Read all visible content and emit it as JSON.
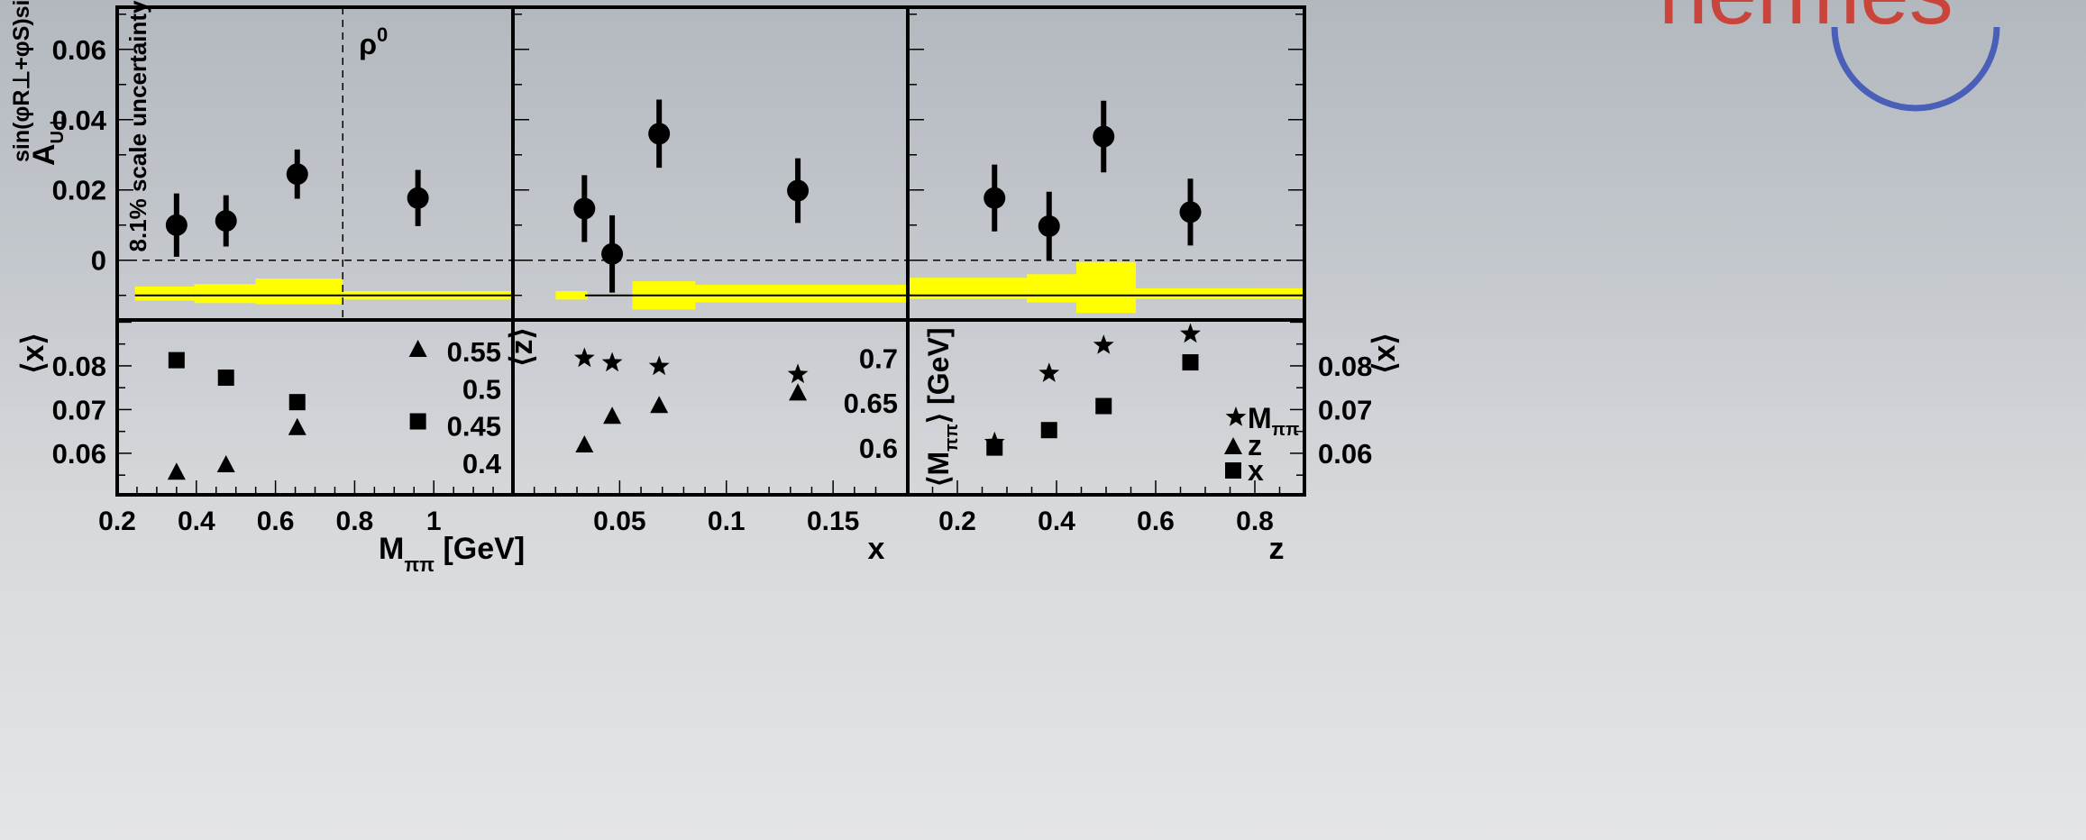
{
  "logo": {
    "text": "nermes",
    "color": "#c9443a",
    "ring": "#4a5fb8"
  },
  "chart_data": [
    {
      "type": "scatter",
      "panel": "top-left",
      "ylabel": "A_U⊥^{sin(φR⊥+φS)sinθ}",
      "ylim": [
        -0.017,
        0.072
      ],
      "yticks": [
        "0",
        "0.02",
        "0.04",
        "0.06"
      ],
      "xlim": [
        0.2,
        1.2
      ],
      "annotations": [
        "8.1% scale uncertainty",
        "ρ0"
      ],
      "rho_line": 0.77,
      "points": [
        {
          "x": 0.35,
          "y": 0.01,
          "err": 0.009
        },
        {
          "x": 0.475,
          "y": 0.0112,
          "err": 0.0073
        },
        {
          "x": 0.655,
          "y": 0.0245,
          "err": 0.007
        },
        {
          "x": 0.96,
          "y": 0.0177,
          "err": 0.008
        }
      ],
      "syst_bands": [
        {
          "x0": 0.245,
          "x1": 0.395,
          "lo": -0.0115,
          "hi": -0.0075
        },
        {
          "x0": 0.395,
          "x1": 0.55,
          "lo": -0.0122,
          "hi": -0.0068
        },
        {
          "x0": 0.55,
          "x1": 0.77,
          "lo": -0.0125,
          "hi": -0.0052
        },
        {
          "x0": 0.77,
          "x1": 1.2,
          "lo": -0.0112,
          "hi": -0.0088
        }
      ]
    },
    {
      "type": "scatter",
      "panel": "top-middle",
      "xlim": [
        0,
        0.185
      ],
      "points": [
        {
          "x": 0.0335,
          "y": 0.0147,
          "err": 0.0095
        },
        {
          "x": 0.0465,
          "y": 0.0018,
          "err": 0.011
        },
        {
          "x": 0.0685,
          "y": 0.036,
          "err": 0.0097
        },
        {
          "x": 0.1335,
          "y": 0.0198,
          "err": 0.0092
        }
      ],
      "syst_bands": [
        {
          "x0": 0.02,
          "x1": 0.035,
          "lo": -0.0112,
          "hi": -0.0088
        },
        {
          "x0": 0.035,
          "x1": 0.056,
          "lo": -0.0102,
          "hi": -0.0098
        },
        {
          "x0": 0.056,
          "x1": 0.0855,
          "lo": -0.014,
          "hi": -0.006
        },
        {
          "x0": 0.0855,
          "x1": 0.185,
          "lo": -0.012,
          "hi": -0.007
        }
      ]
    },
    {
      "type": "scatter",
      "panel": "top-right",
      "xlim": [
        0.1,
        0.9
      ],
      "points": [
        {
          "x": 0.275,
          "y": 0.0177,
          "err": 0.0095
        },
        {
          "x": 0.385,
          "y": 0.0097,
          "err": 0.0098
        },
        {
          "x": 0.495,
          "y": 0.0352,
          "err": 0.0102
        },
        {
          "x": 0.67,
          "y": 0.0137,
          "err": 0.0095
        }
      ],
      "syst_bands": [
        {
          "x0": 0.1,
          "x1": 0.34,
          "lo": -0.011,
          "hi": -0.005
        },
        {
          "x0": 0.34,
          "x1": 0.44,
          "lo": -0.012,
          "hi": -0.004
        },
        {
          "x0": 0.44,
          "x1": 0.56,
          "lo": -0.015,
          "hi": -0.0005
        },
        {
          "x0": 0.56,
          "x1": 0.9,
          "lo": -0.011,
          "hi": -0.008
        }
      ]
    },
    {
      "type": "scatter",
      "panel": "bottom-left",
      "xlabel": "M_ππ [GeV]",
      "xticks": [
        "0.2",
        "0.4",
        "0.6",
        "0.8",
        "1"
      ],
      "ylabel_left": "⟨x⟩",
      "ylim_left": [
        0.0505,
        0.0905
      ],
      "yticks_left": [
        "0.06",
        "0.07",
        "0.08"
      ],
      "ylim_right": [
        0.3575,
        0.5925
      ],
      "yticks_right": [
        "0.4",
        "0.45",
        "0.5",
        "0.55"
      ],
      "series": [
        {
          "name": "x",
          "marker": "square",
          "axis": "left",
          "x": [
            0.35,
            0.475,
            0.655,
            0.96
          ],
          "y": [
            0.0813,
            0.0773,
            0.0717,
            0.0673
          ]
        },
        {
          "name": "z",
          "marker": "triangle",
          "axis": "right",
          "x": [
            0.35,
            0.475,
            0.655,
            0.96
          ],
          "y": [
            0.3875,
            0.3975,
            0.4475,
            0.5525
          ]
        }
      ]
    },
    {
      "type": "scatter",
      "panel": "bottom-middle",
      "xlabel": "x",
      "xticks": [
        "0.05",
        "0.1",
        "0.15"
      ],
      "ylabel_left": "⟨z⟩",
      "ylim": [
        0.5475,
        0.7425
      ],
      "yticks_right": [
        "0.6",
        "0.65",
        "0.7"
      ],
      "series": [
        {
          "name": "M_ππ",
          "marker": "star",
          "axis": "right",
          "x": [
            0.0335,
            0.0465,
            0.0685,
            0.1335
          ],
          "y": [
            0.6998,
            0.6948,
            0.6907,
            0.6818
          ]
        },
        {
          "name": "z",
          "marker": "triangle",
          "axis": "right",
          "x": [
            0.0335,
            0.0465,
            0.0685,
            0.1335
          ],
          "y": [
            0.6028,
            0.6347,
            0.6467,
            0.6607
          ]
        }
      ]
    },
    {
      "type": "scatter",
      "panel": "bottom-right",
      "xlabel": "z",
      "xticks": [
        "0.2",
        "0.4",
        "0.6",
        "0.8"
      ],
      "ylabel_left": "⟨M_ππ⟩ [GeV]",
      "ylabel_right": "⟨x⟩",
      "ylim": [
        0.0505,
        0.0905
      ],
      "yticks_right": [
        "0.06",
        "0.07",
        "0.08"
      ],
      "legend": [
        "M_ππ",
        "z",
        "x"
      ],
      "legend_position": "bottom-right",
      "series": [
        {
          "name": "M_ππ",
          "marker": "star",
          "x": [
            0.275,
            0.385,
            0.495,
            0.67
          ],
          "y": [
            0.0625,
            0.0783,
            0.0847,
            0.0873
          ]
        },
        {
          "name": "x",
          "marker": "square",
          "x": [
            0.275,
            0.385,
            0.495,
            0.67
          ],
          "y": [
            0.0613,
            0.0653,
            0.0708,
            0.0808
          ]
        }
      ]
    }
  ]
}
